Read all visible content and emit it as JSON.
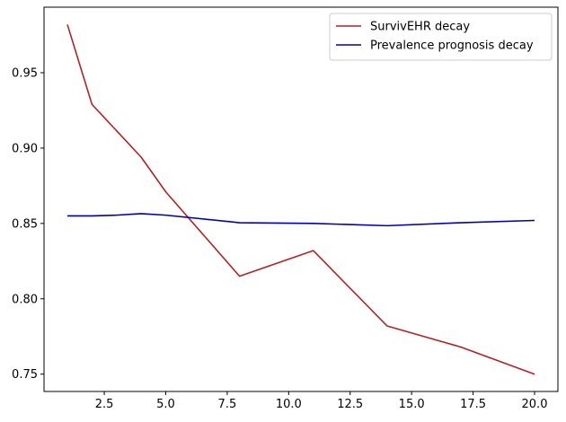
{
  "chart_data": {
    "type": "line",
    "title": "",
    "xlabel": "",
    "ylabel": "",
    "xlim": [
      0.05,
      20.95
    ],
    "ylim": [
      0.7385,
      0.9935
    ],
    "x_ticks": [
      2.5,
      5.0,
      7.5,
      10.0,
      12.5,
      15.0,
      17.5,
      20.0
    ],
    "x_tick_labels": [
      "2.5",
      "5.0",
      "7.5",
      "10.0",
      "12.5",
      "15.0",
      "17.5",
      "20.0"
    ],
    "y_ticks": [
      0.75,
      0.8,
      0.85,
      0.9,
      0.95
    ],
    "y_tick_labels": [
      "0.75",
      "0.80",
      "0.85",
      "0.90",
      "0.95"
    ],
    "grid": false,
    "legend_position": "top-right",
    "series": [
      {
        "name": "SurvivEHR decay",
        "color": "#b22222",
        "x": [
          1,
          2,
          4,
          5,
          8,
          11,
          14,
          17,
          20
        ],
        "y": [
          0.982,
          0.929,
          0.894,
          0.871,
          0.815,
          0.832,
          0.782,
          0.768,
          0.75
        ]
      },
      {
        "name": "Prevalence prognosis decay",
        "color": "#0000b0",
        "x": [
          1,
          2,
          3,
          4,
          5,
          8,
          11,
          14,
          17,
          20
        ],
        "y": [
          0.855,
          0.855,
          0.8555,
          0.8565,
          0.8555,
          0.8505,
          0.85,
          0.8485,
          0.8505,
          0.852
        ]
      }
    ]
  }
}
